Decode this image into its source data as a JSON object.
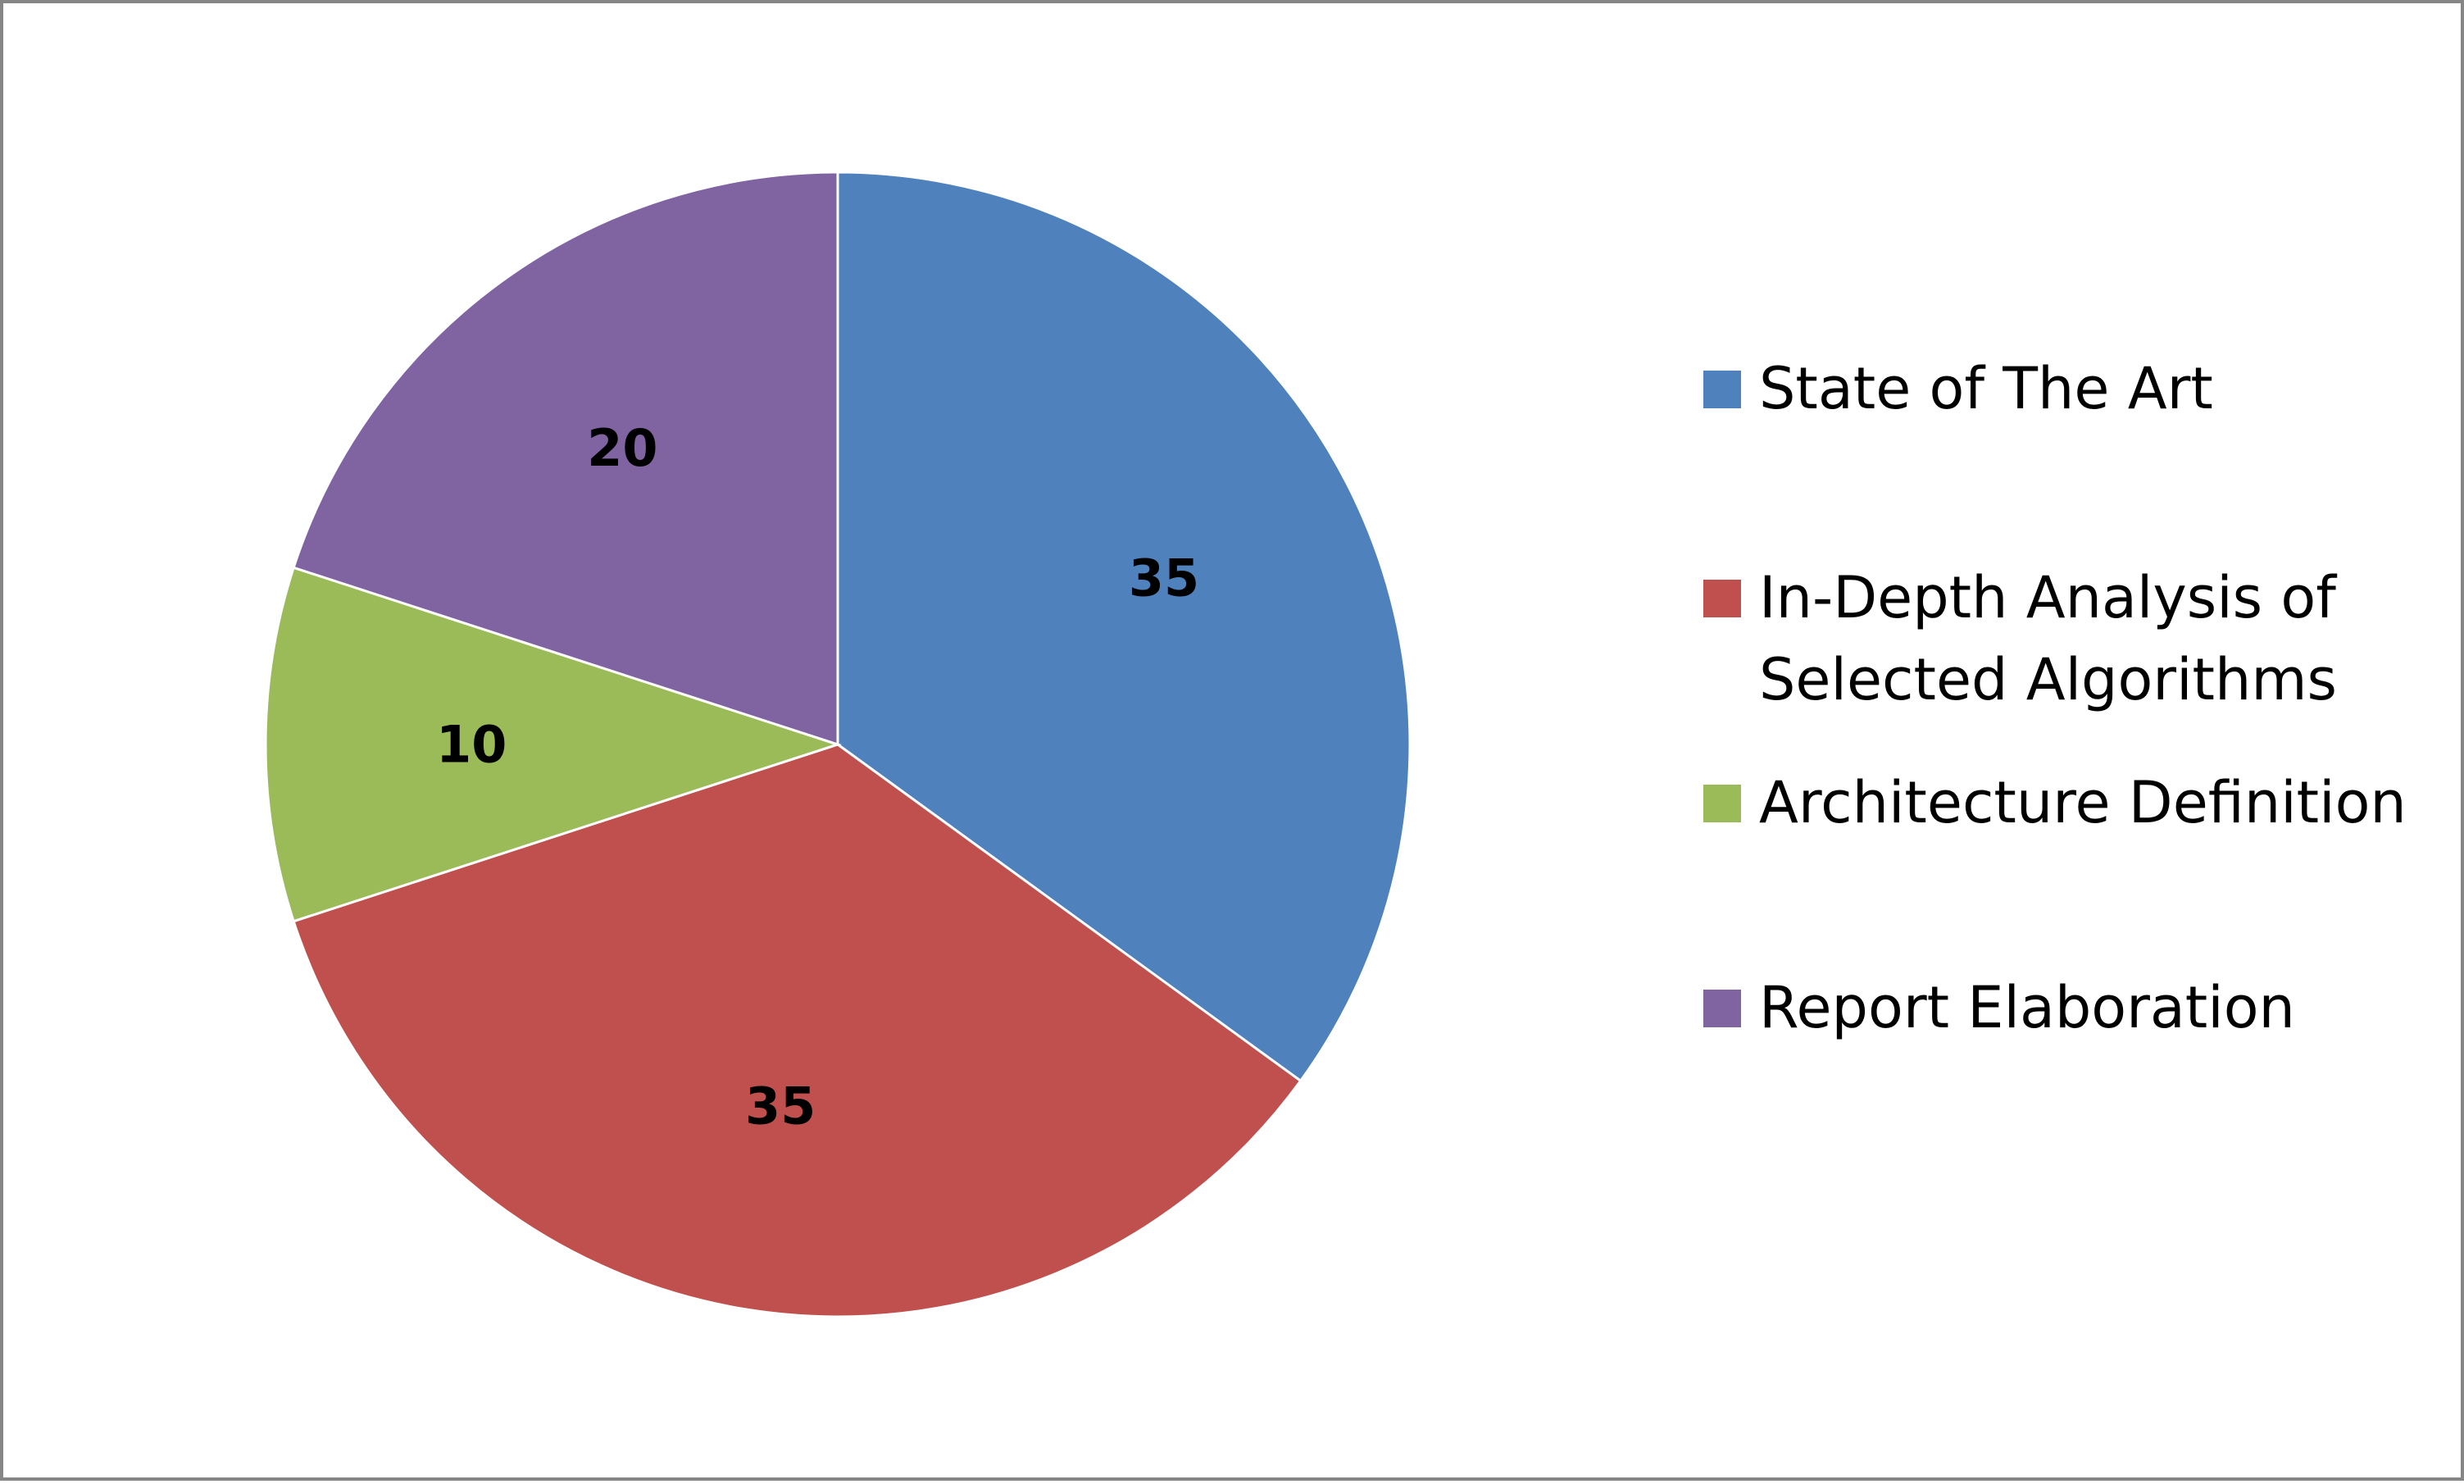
{
  "chart_data": {
    "type": "pie",
    "categories": [
      "State of The Art",
      "In-Depth Analysis of\nSelected Algorithms",
      "Architecture Definition",
      "Report Elaboration"
    ],
    "values": [
      35,
      35,
      10,
      20
    ],
    "colors": [
      "#4F81BD",
      "#C0504D",
      "#9BBB59",
      "#8064A2"
    ],
    "data_labels": [
      "35",
      "35",
      "10",
      "20"
    ],
    "start_angle_deg": 0,
    "direction": "clockwise",
    "legend_position": "right"
  }
}
